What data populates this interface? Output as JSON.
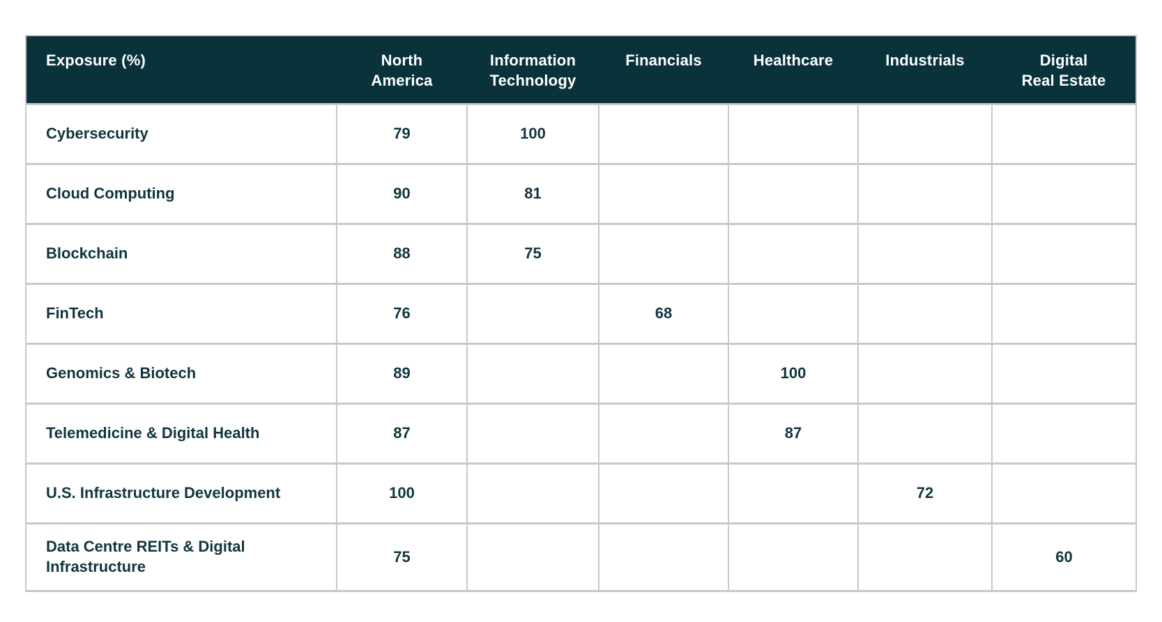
{
  "table": {
    "header": {
      "corner_label": "Exposure (%)",
      "columns": [
        "North\nAmerica",
        "Information\nTechnology",
        "Financials",
        "Healthcare",
        "Industrials",
        "Digital\nReal Estate"
      ]
    },
    "rows": [
      {
        "label": "Cybersecurity",
        "values": [
          "79",
          "100",
          "",
          "",
          "",
          ""
        ]
      },
      {
        "label": "Cloud Computing",
        "values": [
          "90",
          "81",
          "",
          "",
          "",
          ""
        ]
      },
      {
        "label": "Blockchain",
        "values": [
          "88",
          "75",
          "",
          "",
          "",
          ""
        ]
      },
      {
        "label": "FinTech",
        "values": [
          "76",
          "",
          "68",
          "",
          "",
          ""
        ]
      },
      {
        "label": "Genomics & Biotech",
        "values": [
          "89",
          "",
          "",
          "100",
          "",
          ""
        ]
      },
      {
        "label": "Telemedicine & Digital Health",
        "values": [
          "87",
          "",
          "",
          "87",
          "",
          ""
        ]
      },
      {
        "label": "U.S. Infrastructure Development",
        "values": [
          "100",
          "",
          "",
          "",
          "72",
          ""
        ]
      },
      {
        "label": "Data Centre REITs & Digital Infrastructure",
        "values": [
          "75",
          "",
          "",
          "",
          "",
          "60"
        ]
      }
    ]
  },
  "colors": {
    "header_bg": "#09323b",
    "header_text": "#ffffff",
    "body_text": "#11353e",
    "border": "#c6c9c7",
    "row_bg": "#ffffff"
  },
  "chart_data": {
    "type": "table",
    "title": "Exposure (%)",
    "columns": [
      "North America",
      "Information Technology",
      "Financials",
      "Healthcare",
      "Industrials",
      "Digital Real Estate"
    ],
    "rows": [
      {
        "label": "Cybersecurity",
        "values": [
          79,
          100,
          null,
          null,
          null,
          null
        ]
      },
      {
        "label": "Cloud Computing",
        "values": [
          90,
          81,
          null,
          null,
          null,
          null
        ]
      },
      {
        "label": "Blockchain",
        "values": [
          88,
          75,
          null,
          null,
          null,
          null
        ]
      },
      {
        "label": "FinTech",
        "values": [
          76,
          null,
          68,
          null,
          null,
          null
        ]
      },
      {
        "label": "Genomics & Biotech",
        "values": [
          89,
          null,
          null,
          100,
          null,
          null
        ]
      },
      {
        "label": "Telemedicine & Digital Health",
        "values": [
          87,
          null,
          null,
          87,
          null,
          null
        ]
      },
      {
        "label": "U.S. Infrastructure Development",
        "values": [
          100,
          null,
          null,
          null,
          72,
          null
        ]
      },
      {
        "label": "Data Centre REITs & Digital Infrastructure",
        "values": [
          75,
          null,
          null,
          null,
          null,
          60
        ]
      }
    ]
  }
}
